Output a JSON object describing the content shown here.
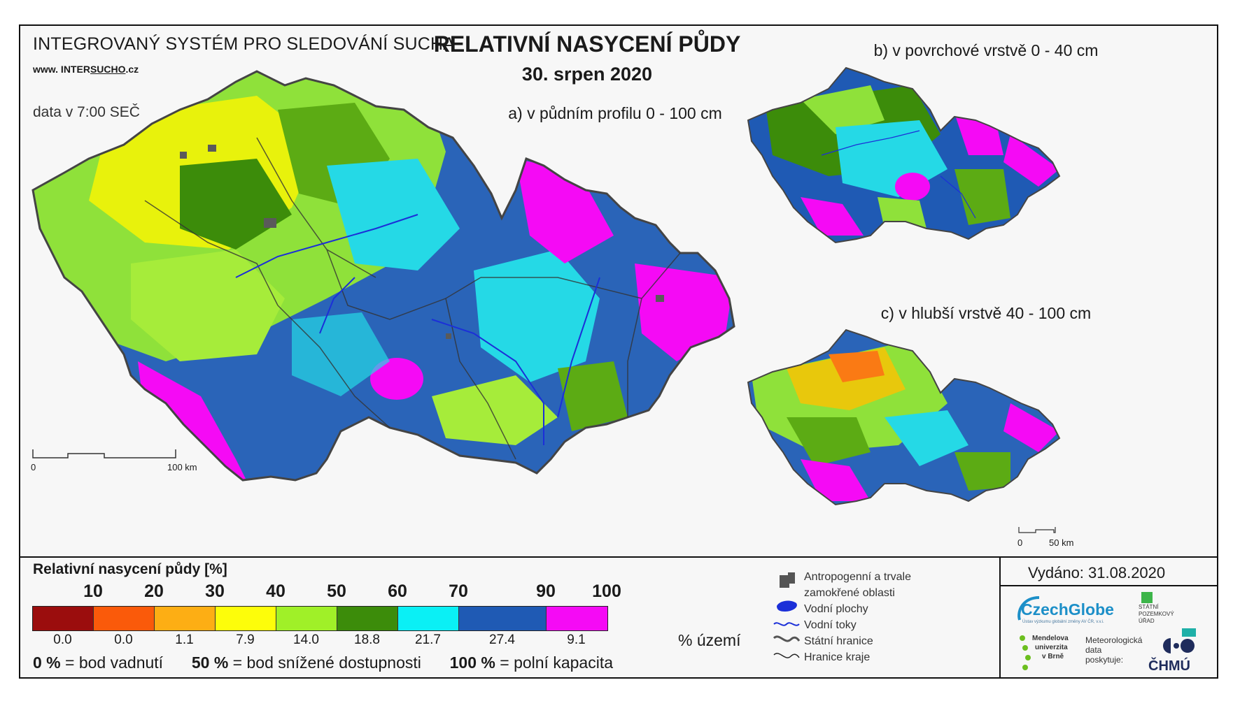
{
  "header": {
    "system_name": "INTEGROVANÝ SYSTÉM PRO SLEDOVÁNÍ SUCHA",
    "website_prefix": "www. INTER",
    "website_underlined": "SUCHO",
    "website_suffix": ".cz",
    "data_time": "data v 7:00 SEČ",
    "title": "RELATIVNÍ NASYCENÍ PŮDY",
    "date": "30. srpen 2020"
  },
  "maps": {
    "a_label": "a) v půdním profilu 0 - 100 cm",
    "b_label": "b) v povrchové vrstvě 0 - 40 cm",
    "c_label": "c) v hlubší vrstvě 40 - 100 cm",
    "scale_main": {
      "start": "0",
      "end": "100 km"
    },
    "scale_small": {
      "start": "0",
      "end": "50 km"
    }
  },
  "legend": {
    "title": "Relativní nasycení půdy [%]",
    "thresholds": [
      "10",
      "20",
      "30",
      "40",
      "50",
      "60",
      "70",
      "90",
      "100"
    ],
    "classes": [
      {
        "color": "#9b0d0d",
        "percent": "0.0"
      },
      {
        "color": "#fa5a0a",
        "percent": "0.0"
      },
      {
        "color": "#fdae14",
        "percent": "1.1"
      },
      {
        "color": "#fdfd0a",
        "percent": "7.9"
      },
      {
        "color": "#a0f028",
        "percent": "14.0"
      },
      {
        "color": "#3c8c0a",
        "percent": "18.8"
      },
      {
        "color": "#0af0f5",
        "percent": "21.7"
      },
      {
        "color": "#1f5ab4",
        "percent": "27.4"
      },
      {
        "color": "#f50af5",
        "percent": "9.1"
      }
    ],
    "territory_unit": "% území",
    "definitions": [
      {
        "value": "0 %",
        "text": " = bod vadnutí"
      },
      {
        "value": "50 %",
        "text": " = bod snížené dostupnosti"
      },
      {
        "value": "100 %",
        "text": " = polní kapacita"
      }
    ],
    "features": {
      "anthropogenic_line1": "Antropogenní a trvale",
      "anthropogenic_line2": "zamokřené oblasti",
      "water_bodies": "Vodní plochy",
      "rivers": "Vodní toky",
      "state_border": "Státní hranice",
      "region_border": "Hranice kraje"
    }
  },
  "footer": {
    "issued": "Vydáno: 31.08.2020",
    "czechglobe": "CzechGlobe",
    "czechglobe_sub": "Ústav výzkumu globální změny AV ČR, v.v.i.",
    "spu_line1": "STÁTNÍ",
    "spu_line2": "POZEMKOVÝ",
    "spu_line3": "ÚŘAD",
    "mendel_line1": "Mendelova",
    "mendel_line2": "univerzita",
    "mendel_line3": "v Brně",
    "met_line1": "Meteorologická",
    "met_line2": "data",
    "met_line3": "poskytuje:",
    "chmu": "ČHMÚ"
  }
}
